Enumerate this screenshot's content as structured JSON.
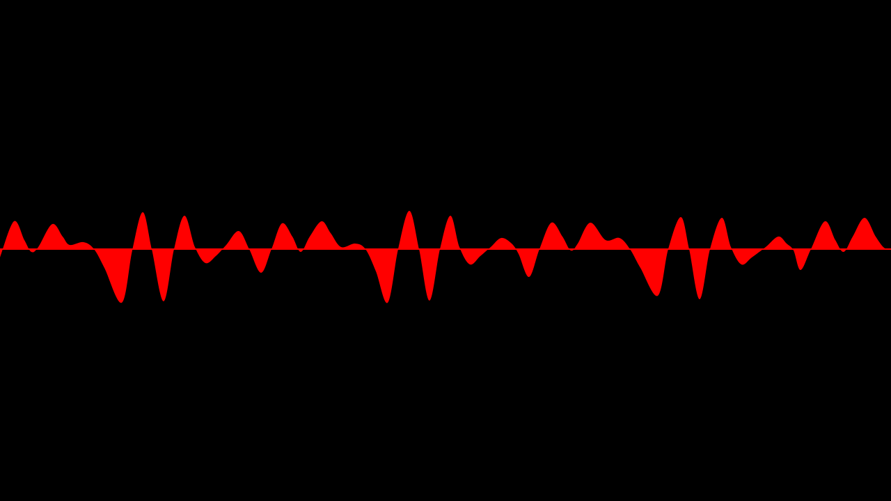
{
  "background_color": "#000000",
  "waveform": {
    "color": "#ff0000",
    "samples": [
      -12,
      40,
      13,
      -4,
      3,
      36,
      18,
      6,
      10,
      0,
      -27,
      -77,
      -2,
      53,
      0,
      -75,
      0,
      48,
      3,
      -20,
      -10,
      6,
      26,
      0,
      -34,
      0,
      37,
      18,
      -4,
      18,
      40,
      23,
      3,
      8,
      0,
      -32,
      -77,
      0,
      55,
      0,
      -74,
      0,
      48,
      3,
      -22,
      -10,
      3,
      16,
      8,
      -7,
      -40,
      0,
      38,
      18,
      -2,
      8,
      38,
      13,
      16,
      0,
      -27,
      -67,
      0,
      46,
      0,
      -72,
      0,
      45,
      3,
      -22,
      -12,
      3,
      18,
      8,
      -2,
      -30,
      0,
      40,
      13,
      -4,
      18,
      45,
      18,
      2,
      0
    ],
    "sample_x": [
      0,
      20,
      35,
      45,
      55,
      75,
      90,
      100,
      120,
      135,
      150,
      175,
      190,
      205,
      218,
      235,
      250,
      265,
      280,
      295,
      310,
      325,
      343,
      358,
      375,
      390,
      405,
      420,
      432,
      445,
      462,
      475,
      490,
      510,
      525,
      540,
      557,
      572,
      588,
      602,
      617,
      632,
      647,
      660,
      675,
      690,
      705,
      720,
      735,
      745,
      760,
      775,
      792,
      808,
      820,
      830,
      848,
      870,
      890,
      905,
      920,
      945,
      960,
      978,
      990,
      1005,
      1020,
      1037,
      1050,
      1065,
      1080,
      1100,
      1118,
      1130,
      1140,
      1150,
      1165,
      1185,
      1200,
      1212,
      1225,
      1242,
      1258,
      1270,
      1280
    ]
  }
}
